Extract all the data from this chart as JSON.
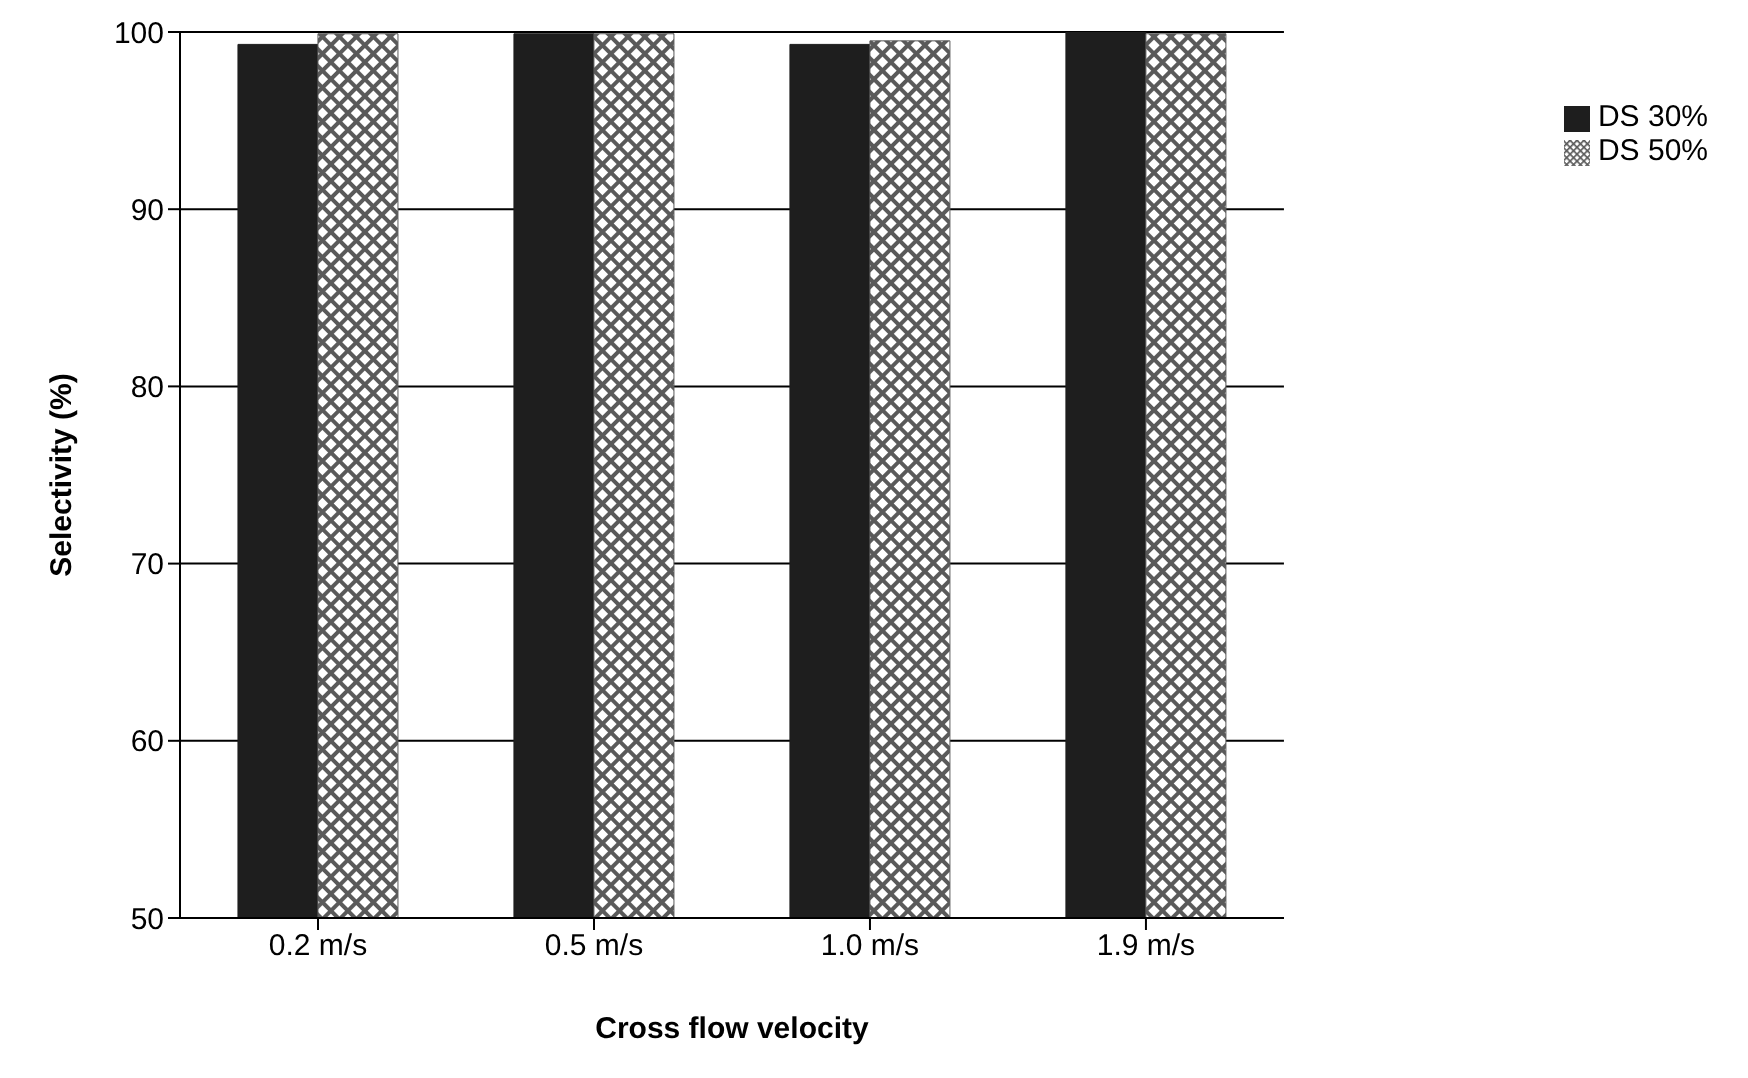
{
  "chart_data": {
    "type": "bar",
    "xlabel": "Cross flow velocity",
    "ylabel": "Selectivity (%)",
    "categories": [
      "0.2 m/s",
      "0.5 m/s",
      "1.0 m/s",
      "1.9 m/s"
    ],
    "series": [
      {
        "name": "DS 30%",
        "color": "#1e1e1e",
        "values": [
          99.3,
          99.9,
          99.3,
          100
        ]
      },
      {
        "name": "DS 50%",
        "color": "#5a5a5a",
        "values": [
          99.9,
          99.9,
          99.5,
          99.9
        ]
      }
    ],
    "ylim": [
      50,
      100
    ],
    "yticks": [
      50,
      60,
      70,
      80,
      90,
      100
    ],
    "grid": "y",
    "legend": "right"
  }
}
